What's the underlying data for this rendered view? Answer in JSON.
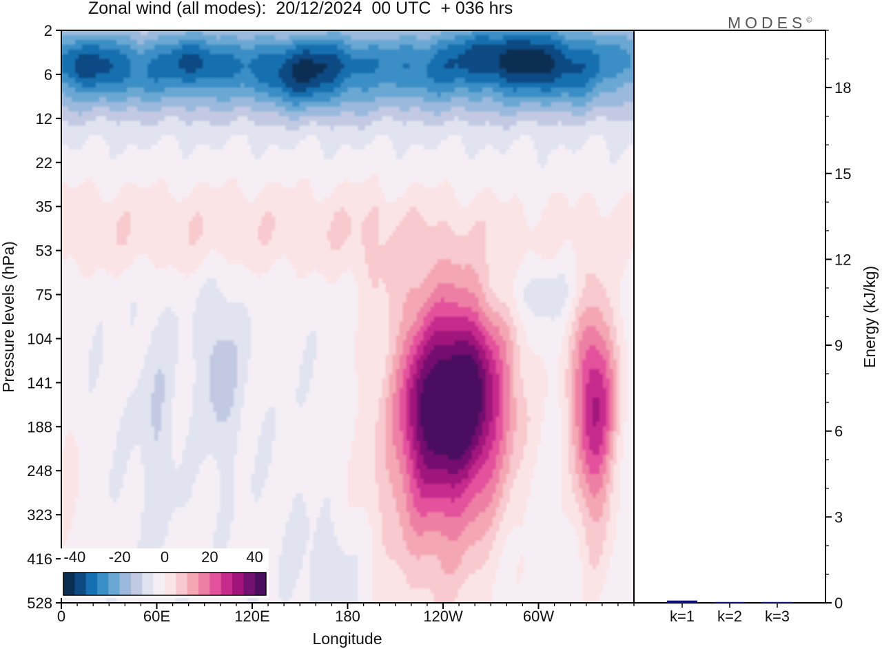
{
  "title": "Zonal wind (all modes):  20/12/2024  00 UTC  + 036 hrs",
  "brand": "MODES",
  "brand_mark": "©",
  "chart_data": [
    {
      "type": "heatmap",
      "title": "Zonal wind (all modes):  20/12/2024  00 UTC  + 036 hrs",
      "xlabel": "Longitude",
      "ylabel": "Pressure levels (hPa)",
      "x_ticks": [
        "0",
        "60E",
        "120E",
        "180",
        "120W",
        "60W"
      ],
      "x_tick_degrees": [
        0,
        60,
        120,
        180,
        240,
        300
      ],
      "xlim": [
        0,
        360
      ],
      "y_levels_hpa": [
        2,
        6,
        12,
        22,
        35,
        53,
        75,
        104,
        141,
        188,
        248,
        323,
        416,
        528
      ],
      "y_scale": "level-index",
      "colorbar": {
        "ticks": [
          "-40",
          "-20",
          "0",
          "20",
          "40"
        ],
        "range": [
          -45,
          45
        ],
        "step": 5,
        "colors": [
          "#0b2f52",
          "#0d4a82",
          "#1470b0",
          "#3a8ec6",
          "#6aa8d3",
          "#9ab9dc",
          "#c2cae3",
          "#e1e3f0",
          "#f5eff5",
          "#fbe4e6",
          "#f8c9cd",
          "#f4a7b3",
          "#ee7fa4",
          "#e4519c",
          "#c62a8c",
          "#a0147c",
          "#741170",
          "#4b0d5e"
        ]
      },
      "features": [
        {
          "label": "easterly jet core",
          "level_range_hpa": [
            2,
            12
          ],
          "lon_range": [
            0,
            360
          ],
          "max_value": -40
        },
        {
          "label": "westerly jet core",
          "level_range_hpa": [
            75,
            323
          ],
          "lon_range": [
            195,
            290
          ],
          "center_lon": 252,
          "center_level_hpa": 141,
          "max_value": 40
        },
        {
          "label": "westerly jet core",
          "level_range_hpa": [
            104,
            416
          ],
          "lon_range": [
            300,
            355
          ],
          "center_lon": 335,
          "center_level_hpa": 141,
          "max_value": 35
        }
      ]
    },
    {
      "type": "bar",
      "categories": [
        "k=1",
        "k=2",
        "k=3"
      ],
      "values": [
        0.08,
        0.02,
        0.01
      ],
      "ylabel": "Energy (kJ/kg)",
      "ylim": [
        0,
        20
      ],
      "y_ticks": [
        "0",
        "3",
        "6",
        "9",
        "12",
        "15",
        "18"
      ],
      "y_tick_values": [
        0,
        3,
        6,
        9,
        12,
        15,
        18
      ],
      "bar_color": "#0a0f7a"
    }
  ]
}
